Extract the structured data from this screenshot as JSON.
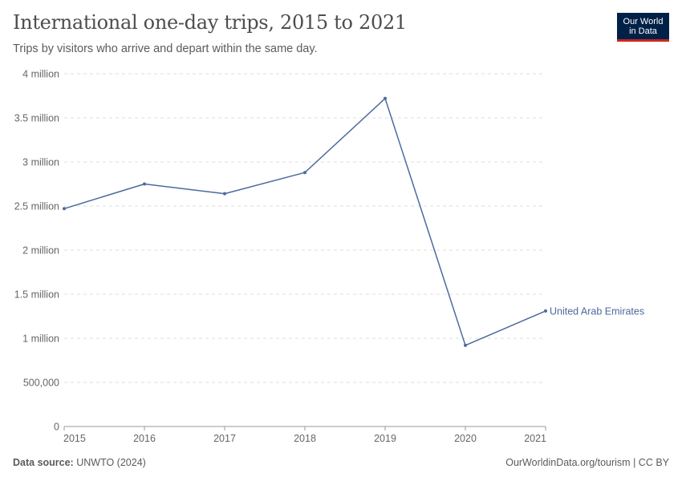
{
  "header": {
    "title": "International one-day trips, 2015 to 2021",
    "subtitle": "Trips by visitors who arrive and depart within the same day."
  },
  "logo": {
    "line1": "Our World",
    "line2": "in Data",
    "bg_color": "#002147",
    "accent_color": "#ce261e"
  },
  "footer": {
    "source_label": "Data source:",
    "source_value": "UNWTO (2024)",
    "credit": "OurWorldinData.org/tourism | CC BY"
  },
  "chart_data": {
    "type": "line",
    "x": [
      2015,
      2016,
      2017,
      2018,
      2019,
      2020,
      2021
    ],
    "series": [
      {
        "name": "United Arab Emirates",
        "color": "#4c6a9c",
        "values": [
          2470000,
          2750000,
          2640000,
          2880000,
          3720000,
          920000,
          1310000
        ]
      }
    ],
    "ylim": [
      0,
      4000000
    ],
    "yticks": [
      0,
      500000,
      1000000,
      1500000,
      2000000,
      2500000,
      3000000,
      3500000,
      4000000
    ],
    "ytick_labels": [
      "0",
      "500,000",
      "1 million",
      "1.5 million",
      "2 million",
      "2.5 million",
      "3 million",
      "3.5 million",
      "4 million"
    ],
    "xtick_labels": [
      "2015",
      "2016",
      "2017",
      "2018",
      "2019",
      "2020",
      "2021"
    ],
    "grid": true,
    "legend": "inline-right"
  }
}
